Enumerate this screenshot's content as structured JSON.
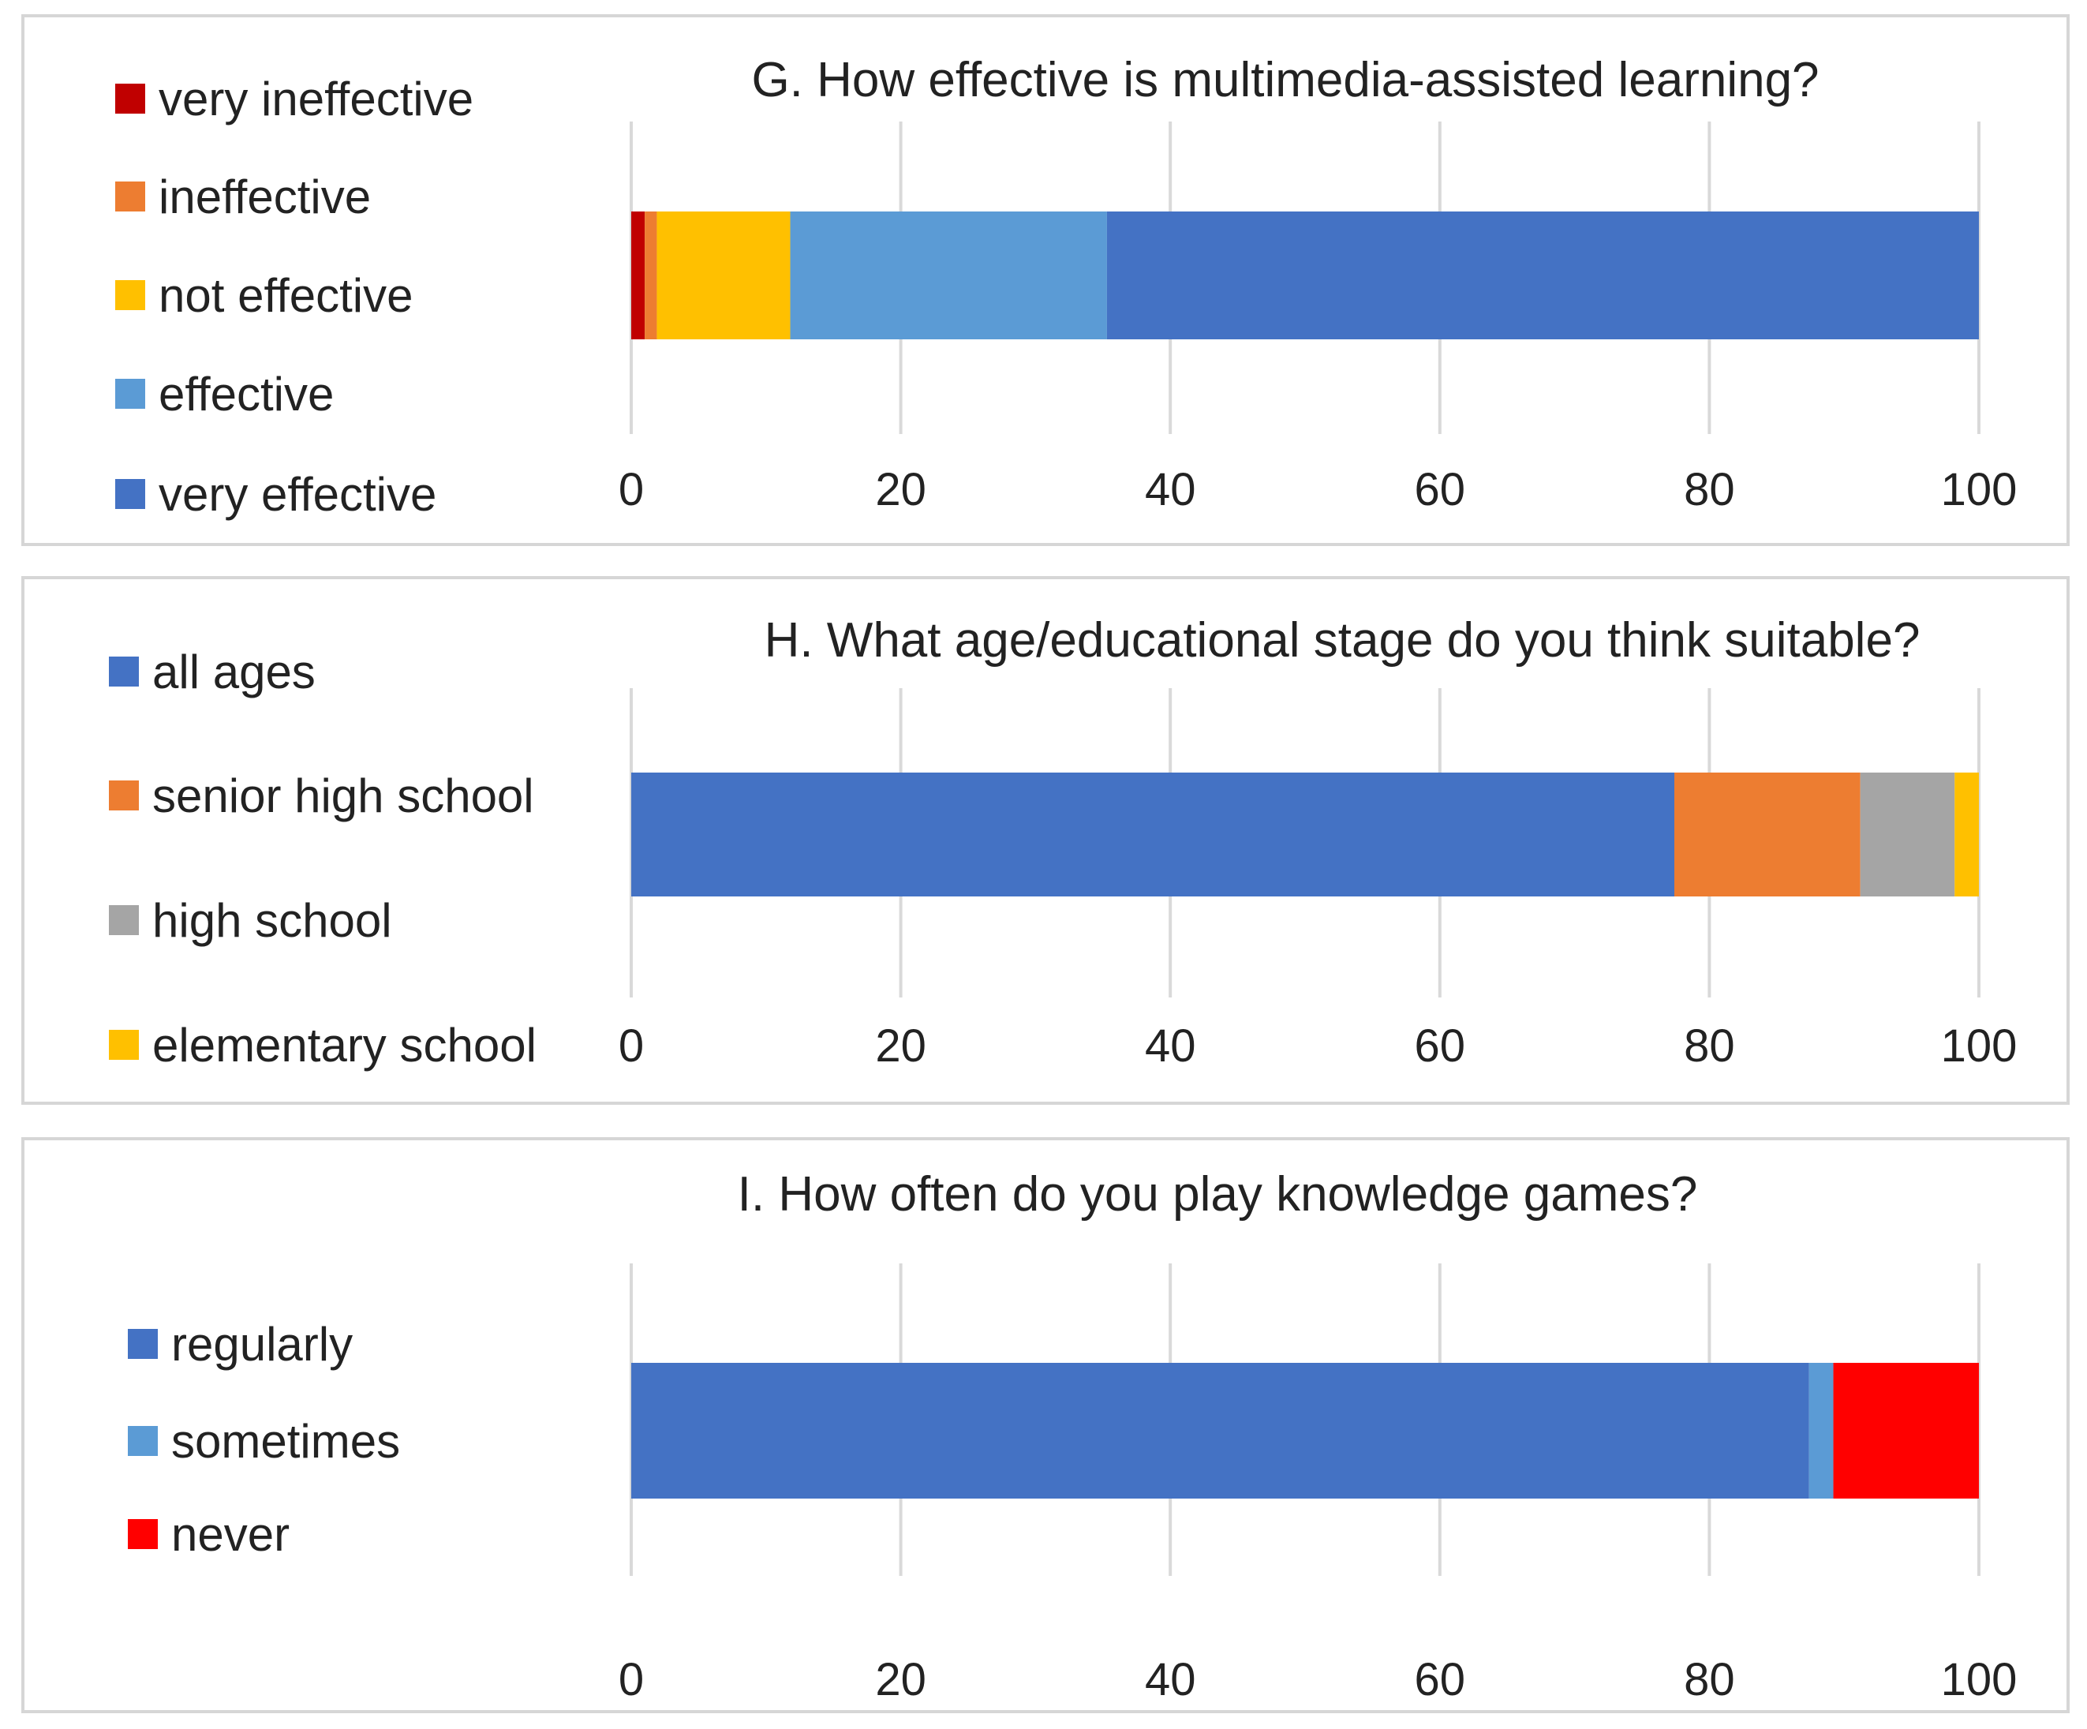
{
  "chart_data": [
    {
      "type": "bar",
      "orientation": "horizontal-stacked",
      "title": "G. How effective is multimedia-assisted learning?",
      "xlim": [
        0,
        100
      ],
      "xticks": [
        0,
        20,
        40,
        60,
        80,
        100
      ],
      "grid": true,
      "legend_position": "left",
      "legend_order": [
        "very ineffective",
        "ineffective",
        "not effective",
        "effective",
        "very effective"
      ],
      "series": [
        {
          "name": "very ineffective",
          "value": 1.0,
          "color": "#C00000"
        },
        {
          "name": "ineffective",
          "value": 0.9,
          "color": "#ED7D31"
        },
        {
          "name": "not effective",
          "value": 9.9,
          "color": "#FFC000"
        },
        {
          "name": "effective",
          "value": 23.5,
          "color": "#5B9BD5"
        },
        {
          "name": "very effective",
          "value": 64.7,
          "color": "#4472C4"
        }
      ]
    },
    {
      "type": "bar",
      "orientation": "horizontal-stacked",
      "title": "H. What age/educational stage do you think suitable?",
      "xlim": [
        0,
        100
      ],
      "xticks": [
        0,
        20,
        40,
        60,
        80,
        100
      ],
      "grid": true,
      "legend_position": "left",
      "legend_order": [
        "all ages",
        "senior high school",
        "high school",
        "elementary school"
      ],
      "series": [
        {
          "name": "all ages",
          "value": 77.4,
          "color": "#4472C4"
        },
        {
          "name": "senior high school",
          "value": 13.8,
          "color": "#ED7D31"
        },
        {
          "name": "high school",
          "value": 7.0,
          "color": "#A5A5A5"
        },
        {
          "name": "elementary school",
          "value": 1.8,
          "color": "#FFC000"
        }
      ]
    },
    {
      "type": "bar",
      "orientation": "horizontal-stacked",
      "title": "I. How often do you play knowledge games?",
      "xlim": [
        0,
        100
      ],
      "xticks": [
        0,
        20,
        40,
        60,
        80,
        100
      ],
      "grid": true,
      "legend_position": "left",
      "legend_order": [
        "regularly",
        "sometimes",
        "never"
      ],
      "series": [
        {
          "name": "regularly",
          "value": 87.4,
          "color": "#4472C4"
        },
        {
          "name": "sometimes",
          "value": 1.8,
          "color": "#5B9BD5"
        },
        {
          "name": "never",
          "value": 10.8,
          "color": "#FF0000"
        }
      ]
    }
  ]
}
